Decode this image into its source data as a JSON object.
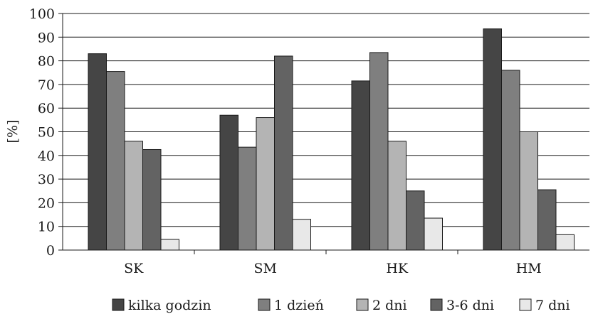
{
  "chart_data": {
    "type": "bar",
    "title": "",
    "xlabel": "",
    "ylabel": "[%]",
    "ylim": [
      0,
      100
    ],
    "yticks": [
      0,
      10,
      20,
      30,
      40,
      50,
      60,
      70,
      80,
      90,
      100
    ],
    "grid": true,
    "legend_position": "bottom",
    "categories": [
      "SK",
      "SM",
      "HK",
      "HM"
    ],
    "series": [
      {
        "name": "kilka godzin",
        "color": "#454545",
        "values": [
          83,
          57,
          71.5,
          93.5
        ]
      },
      {
        "name": "1 dzień",
        "color": "#7f7f7f",
        "values": [
          75.5,
          43.5,
          83.5,
          76
        ]
      },
      {
        "name": "2 dni",
        "color": "#b4b4b4",
        "values": [
          46,
          56,
          46,
          50
        ]
      },
      {
        "name": "3-6 dni",
        "color": "#636363",
        "values": [
          42.5,
          82,
          25,
          25.5
        ]
      },
      {
        "name": "7 dni",
        "color": "#e8e8e8",
        "values": [
          4.5,
          13,
          13.5,
          6.5
        ]
      }
    ]
  }
}
